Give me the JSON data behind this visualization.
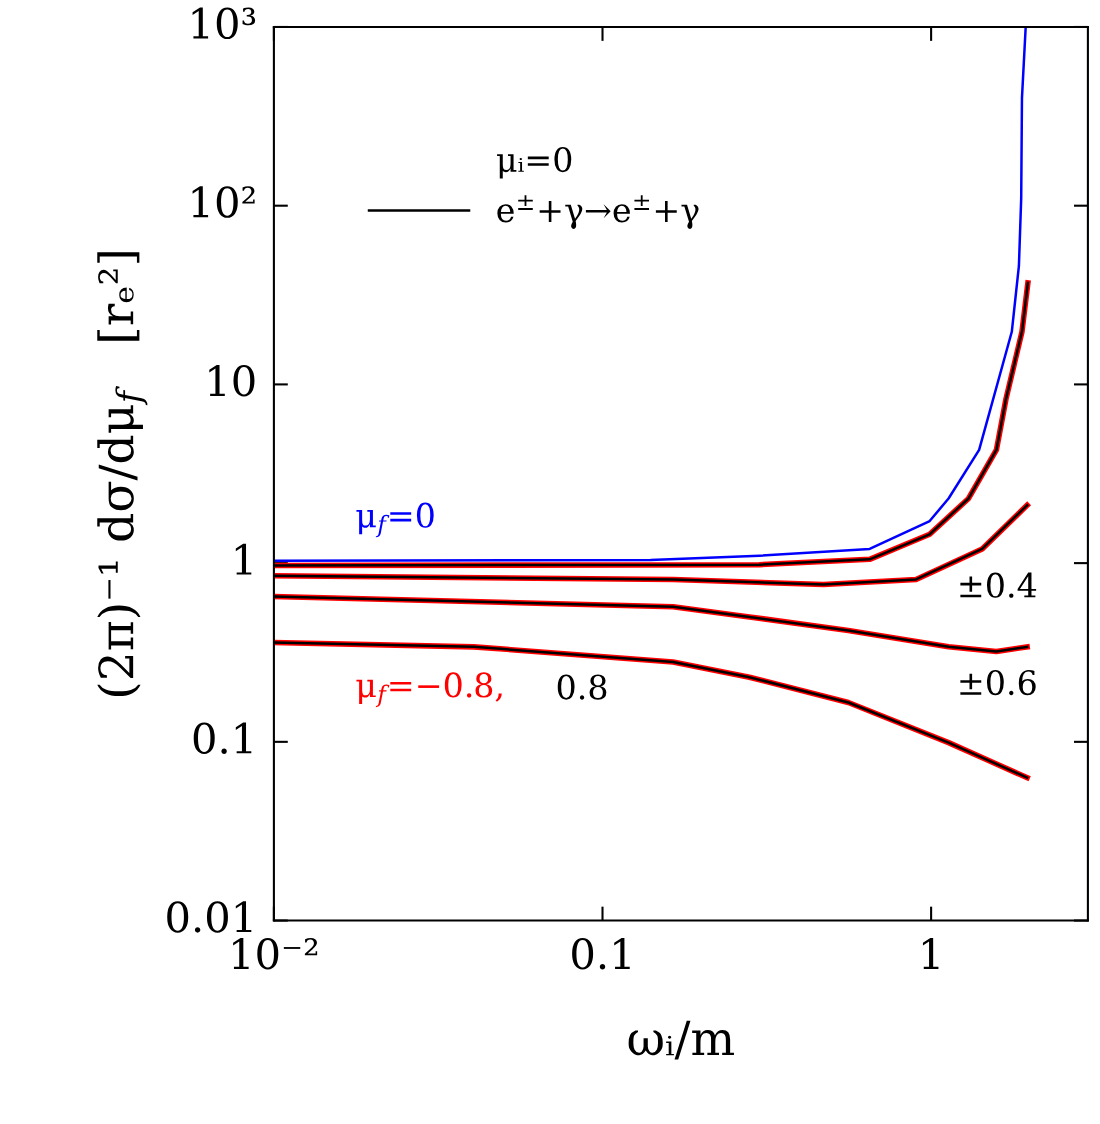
{
  "chart_data": {
    "type": "line",
    "xlabel": "ωᵢ/m",
    "ylabel": "(2π)⁻¹ dσ/dμ$_{f}$   [rₑ²]",
    "legend_title": "μᵢ=0",
    "log": "xy",
    "xlim": [
      0.01,
      3
    ],
    "ylim": [
      0.01,
      1000
    ],
    "xticks": [
      {
        "value": 0.01,
        "label": "10⁻²"
      },
      0.1,
      1
    ],
    "yticks": [
      0.01,
      0.1,
      1,
      10,
      {
        "value": 100,
        "label": "10²"
      },
      {
        "value": 1000,
        "label": "10³"
      }
    ],
    "legend": "top left",
    "grid": false,
    "marker": "none",
    "line_style": "solid",
    "series": [
      {
        "color": "#0000ff",
        "name": "μ$_{f}$=0",
        "x": [
          0.01,
          0.14,
          0.3,
          0.65,
          0.99,
          1.13,
          1.4,
          1.76,
          1.85,
          1.88,
          1.89,
          1.94
        ],
        "values": [
          1.03,
          1.04,
          1.1,
          1.2,
          1.72,
          2.3,
          4.3,
          19.7,
          46,
          110,
          400,
          1000
        ]
      },
      {
        "color": "#ff0000",
        "x": [
          0.01,
          0.3,
          0.65,
          0.99,
          1.3,
          1.58,
          1.69,
          1.89,
          1.97
        ],
        "values": [
          0.97,
          0.98,
          1.05,
          1.45,
          2.3,
          4.3,
          8.3,
          19.7,
          37
        ]
      },
      {
        "color": "#000000",
        "name": "e$^{±}$+γ→e$^{±}$+γ",
        "x": [
          0.01,
          0.3,
          0.65,
          0.99,
          1.3,
          1.58,
          1.69,
          1.89,
          1.97
        ],
        "values": [
          0.97,
          0.98,
          1.05,
          1.45,
          2.3,
          4.3,
          8.3,
          19.7,
          37
        ]
      },
      {
        "color": "#ff0000",
        "x": [
          0.01,
          0.164,
          0.47,
          0.9,
          1.43,
          1.96
        ],
        "values": [
          0.85,
          0.81,
          0.76,
          0.81,
          1.2,
          2.11
        ]
      },
      {
        "color": "#000000",
        "name": "±0.4",
        "x": [
          0.01,
          0.164,
          0.47,
          0.9,
          1.43,
          1.96
        ],
        "values": [
          0.85,
          0.81,
          0.76,
          0.81,
          1.2,
          2.11
        ]
      },
      {
        "color": "#ff0000",
        "x": [
          0.01,
          0.164,
          0.28,
          0.56,
          1.13,
          1.58,
          1.96
        ],
        "values": [
          0.65,
          0.57,
          0.5,
          0.42,
          0.34,
          0.32,
          0.34
        ]
      },
      {
        "color": "#000000",
        "name": "±0.6",
        "x": [
          0.01,
          0.164,
          0.28,
          0.56,
          1.13,
          1.58,
          1.96
        ],
        "values": [
          0.65,
          0.57,
          0.5,
          0.42,
          0.34,
          0.32,
          0.34
        ]
      },
      {
        "color": "#ff0000",
        "name": "μ$_{f}$=−0.8,",
        "x": [
          0.01,
          0.0406,
          0.164,
          0.28,
          0.56,
          1.13,
          1.96
        ],
        "values": [
          0.36,
          0.34,
          0.28,
          0.23,
          0.166,
          0.099,
          0.063
        ]
      },
      {
        "color": "#000000",
        "name": "0.8",
        "x": [
          0.01,
          0.0406,
          0.164,
          0.28,
          0.56,
          1.13,
          1.96
        ],
        "values": [
          0.36,
          0.34,
          0.28,
          0.23,
          0.166,
          0.099,
          0.063
        ]
      }
    ]
  }
}
